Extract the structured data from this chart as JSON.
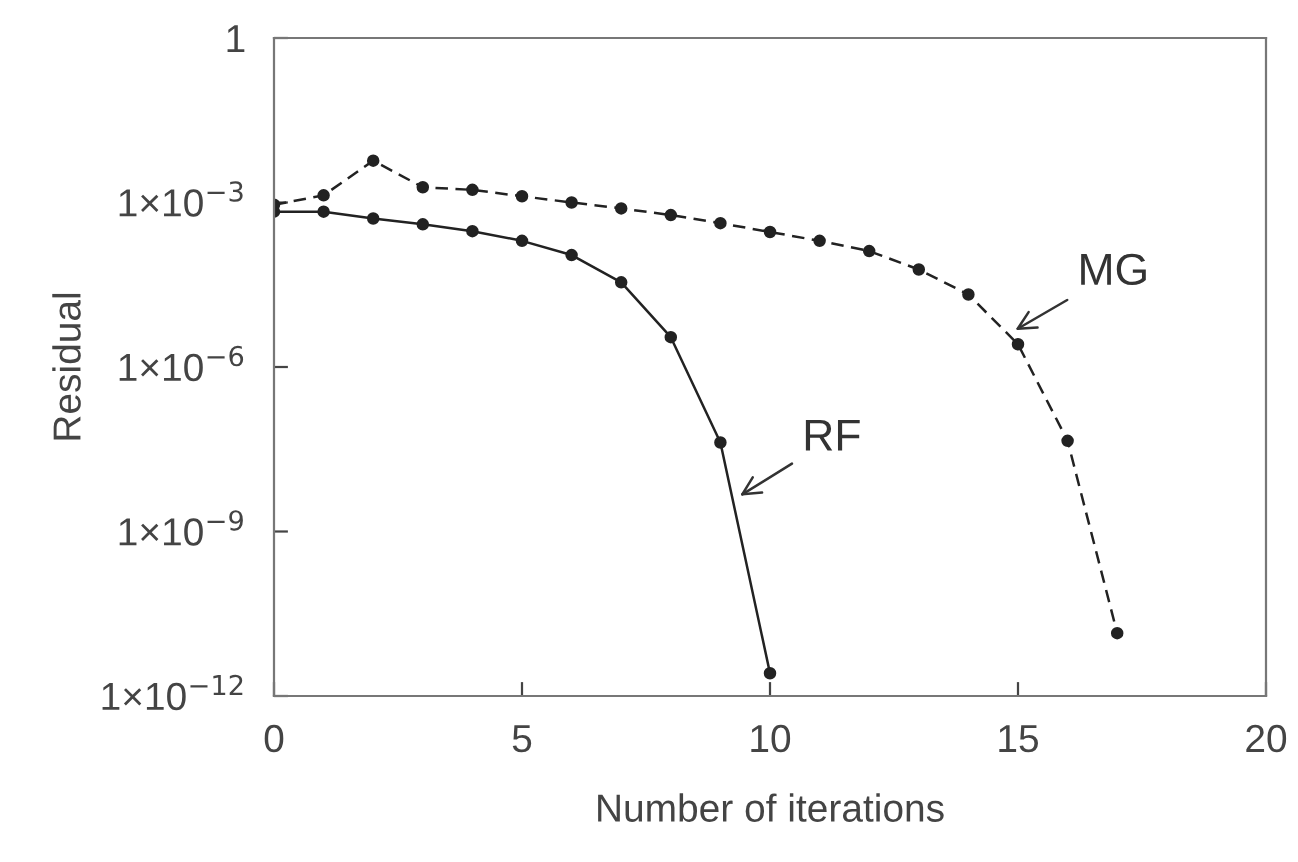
{
  "chart_data": {
    "type": "line",
    "xlabel": "Number of iterations",
    "ylabel": "Residual",
    "log": "y",
    "xlim": [
      0,
      20
    ],
    "xticks": [
      0,
      5,
      10,
      15,
      20
    ],
    "ylim": [
      1e-12,
      1
    ],
    "yticks": [
      {
        "value": 1e-12,
        "label": "1×10$^{−12}$"
      },
      {
        "value": 1e-09,
        "label": "1×10$^{−9}$"
      },
      {
        "value": 1e-06,
        "label": "1×10$^{−6}$"
      },
      {
        "value": 0.001,
        "label": "1×10$^{−3}$"
      },
      {
        "value": 1,
        "label": "1"
      }
    ],
    "grid": false,
    "legend": false,
    "marker": "circle",
    "series": [
      {
        "name": "RF",
        "x": [
          0,
          1,
          2,
          3,
          4,
          5,
          6,
          7,
          8,
          9,
          10
        ],
        "color": "#222222",
        "line_style": "solid",
        "values": [
          0.00068,
          0.00068,
          0.00051,
          0.0004,
          0.0003,
          0.0002,
          0.00011,
          3.5e-05,
          3.5e-06,
          4.2e-08,
          2.6e-12
        ]
      },
      {
        "name": "MG",
        "x": [
          0,
          1,
          2,
          3,
          4,
          5,
          6,
          7,
          8,
          9,
          10,
          11,
          12,
          13,
          14,
          15,
          16,
          17
        ],
        "color": "#222222",
        "line_style": "dashed",
        "values": [
          0.00091,
          0.00135,
          0.0058,
          0.0019,
          0.0017,
          0.0013,
          0.001,
          0.00078,
          0.00059,
          0.00042,
          0.00029,
          0.0002,
          0.00013,
          6e-05,
          2.1e-05,
          2.6e-06,
          4.5e-08,
          1.4e-11
        ]
      }
    ]
  }
}
